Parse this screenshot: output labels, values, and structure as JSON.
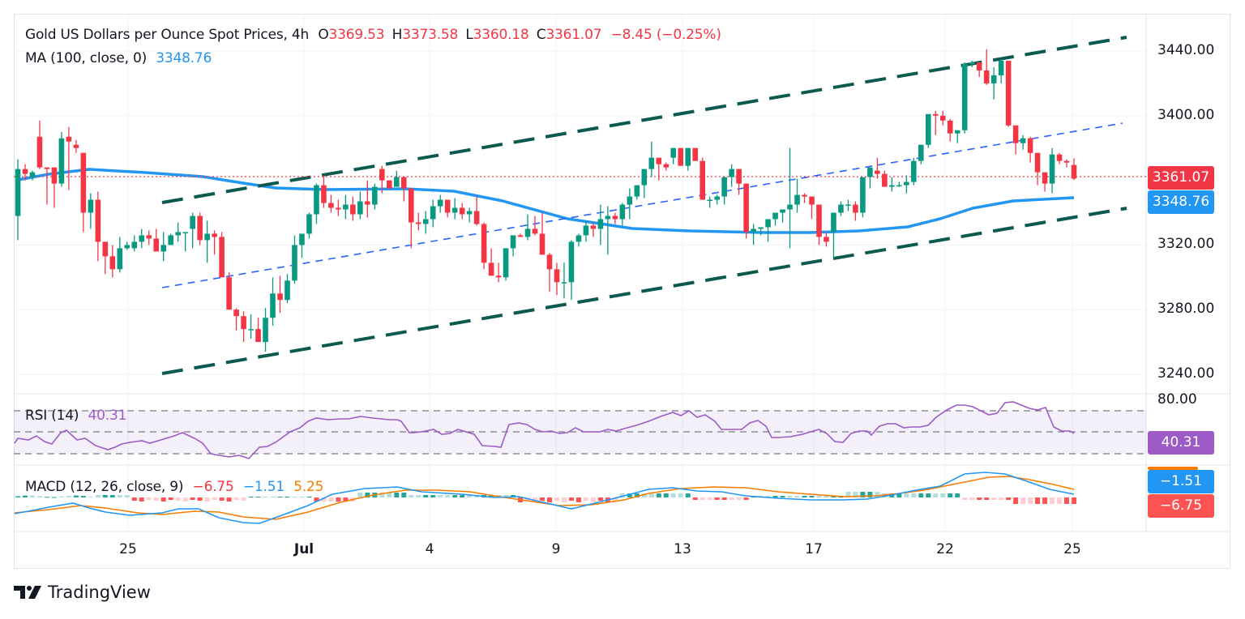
{
  "header": {
    "symbol": "Gold US Dollars per Ounce Spot Prices, 4h",
    "open_label": "O",
    "open": "3369.53",
    "high_label": "H",
    "high": "3373.58",
    "low_label": "L",
    "low": "3360.18",
    "close_label": "C",
    "close": "3361.07",
    "change": "−8.45 (−0.25%)"
  },
  "ma_legend": {
    "label": "MA (100, close, 0)",
    "value": "3348.76"
  },
  "rsi_legend": {
    "label": "RSI (14)",
    "value": "40.31"
  },
  "macd_legend": {
    "label": "MACD (12, 26, close, 9)",
    "histogram": "−6.75",
    "macd": "−1.51",
    "signal": "5.25"
  },
  "price_axis": {
    "ticks": [
      "3440.00",
      "3400.00",
      "3320.00",
      "3280.00",
      "3240.00"
    ]
  },
  "price_tags": {
    "last_price": "3361.07",
    "ma_value": "3348.76"
  },
  "rsi_axis": {
    "tick": "80.00",
    "tag": "40.31"
  },
  "macd_tags": {
    "macd": "−1.51",
    "histogram": "−6.75"
  },
  "time_axis": {
    "labels": [
      "25",
      "Jul",
      "4",
      "9",
      "13",
      "17",
      "22",
      "25"
    ]
  },
  "branding": {
    "name": "TradingView"
  },
  "colors": {
    "up": "#089981",
    "down": "#f23645",
    "ma": "#2196f3",
    "channel": "#0b5a50",
    "midline": "#2962ff",
    "rsi": "#9c5bc6",
    "macd": "#2196f3",
    "signal": "#f77c00",
    "hist_up_strong": "#26a69a",
    "hist_up_weak": "#b2dfdb",
    "hist_down_strong": "#ff5252",
    "hist_down_weak": "#ffcdd2"
  },
  "chart_data": {
    "type": "candlestick",
    "title": "Gold US Dollars per Ounce Spot Prices, 4h",
    "y_range": [
      3225,
      3455
    ],
    "y_ticks": [
      3240,
      3280,
      3320,
      3400,
      3440
    ],
    "x_tick_labels": [
      "25",
      "Jul",
      "4",
      "9",
      "13",
      "17",
      "22",
      "25"
    ],
    "ohlc": [
      [
        3338,
        3373,
        3323,
        3367
      ],
      [
        3367,
        3370,
        3360,
        3364
      ],
      [
        3362,
        3366,
        3360,
        3365
      ],
      [
        3387,
        3397,
        3367,
        3368
      ],
      [
        3368,
        3367,
        3345,
        3367
      ],
      [
        3368,
        3354,
        3343,
        3358
      ],
      [
        3358,
        3390,
        3356,
        3386
      ],
      [
        3387,
        3393,
        3354,
        3384
      ],
      [
        3382,
        3385,
        3377,
        3380
      ],
      [
        3377,
        3376,
        3328,
        3340
      ],
      [
        3340,
        3352,
        3330,
        3348
      ],
      [
        3348,
        3353,
        3310,
        3322
      ],
      [
        3322,
        3320,
        3302,
        3313
      ],
      [
        3313,
        3320,
        3300,
        3305
      ],
      [
        3305,
        3325,
        3303,
        3318
      ],
      [
        3318,
        3322,
        3317,
        3320
      ],
      [
        3318,
        3326,
        3316,
        3322
      ],
      [
        3322,
        3330,
        3318,
        3326
      ],
      [
        3326,
        3329,
        3320,
        3324
      ],
      [
        3324,
        3330,
        3320,
        3316
      ],
      [
        3316,
        3328,
        3310,
        3320
      ],
      [
        3320,
        3327,
        3320,
        3326
      ],
      [
        3326,
        3334,
        3322,
        3328
      ],
      [
        3328,
        3327,
        3316,
        3328
      ],
      [
        3330,
        3340,
        3318,
        3338
      ],
      [
        3338,
        3340,
        3320,
        3323
      ],
      [
        3323,
        3335,
        3309,
        3327
      ],
      [
        3327,
        3329,
        3314,
        3325
      ],
      [
        3325,
        3328,
        3306,
        3300
      ],
      [
        3300,
        3303,
        3288,
        3280
      ],
      [
        3280,
        3281,
        3267,
        3276
      ],
      [
        3276,
        3279,
        3260,
        3268
      ],
      [
        3268,
        3277,
        3262,
        3268
      ],
      [
        3268,
        3275,
        3260,
        3260
      ],
      [
        3260,
        3281,
        3254,
        3275
      ],
      [
        3275,
        3300,
        3270,
        3290
      ],
      [
        3290,
        3301,
        3278,
        3286
      ],
      [
        3286,
        3302,
        3284,
        3298
      ],
      [
        3298,
        3326,
        3296,
        3320
      ],
      [
        3320,
        3324,
        3312,
        3327
      ],
      [
        3327,
        3340,
        3324,
        3339
      ],
      [
        3339,
        3358,
        3333,
        3357
      ],
      [
        3357,
        3363,
        3343,
        3346
      ],
      [
        3346,
        3351,
        3340,
        3343
      ],
      [
        3343,
        3348,
        3338,
        3342
      ],
      [
        3342,
        3351,
        3336,
        3345
      ],
      [
        3345,
        3350,
        3335,
        3339
      ],
      [
        3339,
        3353,
        3336,
        3347
      ],
      [
        3347,
        3360,
        3337,
        3345
      ],
      [
        3345,
        3358,
        3342,
        3356
      ],
      [
        3367,
        3369,
        3352,
        3360
      ],
      [
        3360,
        3357,
        3358,
        3355
      ],
      [
        3356,
        3366,
        3356,
        3362
      ],
      [
        3362,
        3357,
        3347,
        3355
      ],
      [
        3355,
        3352,
        3318,
        3334
      ],
      [
        3334,
        3340,
        3329,
        3333
      ],
      [
        3333,
        3341,
        3327,
        3336
      ],
      [
        3336,
        3348,
        3331,
        3344
      ],
      [
        3344,
        3351,
        3340,
        3348
      ],
      [
        3348,
        3347,
        3337,
        3340
      ],
      [
        3340,
        3349,
        3336,
        3343
      ],
      [
        3343,
        3346,
        3336,
        3339
      ],
      [
        3339,
        3343,
        3334,
        3341
      ],
      [
        3341,
        3350,
        3332,
        3333
      ],
      [
        3333,
        3334,
        3305,
        3309
      ],
      [
        3309,
        3318,
        3302,
        3301
      ],
      [
        3301,
        3309,
        3297,
        3300
      ],
      [
        3300,
        3313,
        3298,
        3318
      ],
      [
        3318,
        3324,
        3313,
        3326
      ],
      [
        3326,
        3327,
        3325,
        3325
      ],
      [
        3325,
        3339,
        3323,
        3330
      ],
      [
        3330,
        3338,
        3326,
        3327
      ],
      [
        3327,
        3340,
        3322,
        3314
      ],
      [
        3314,
        3315,
        3291,
        3305
      ],
      [
        3305,
        3309,
        3289,
        3297
      ],
      [
        3297,
        3309,
        3287,
        3297
      ],
      [
        3297,
        3323,
        3286,
        3322
      ],
      [
        3322,
        3327,
        3319,
        3326
      ],
      [
        3326,
        3335,
        3322,
        3332
      ],
      [
        3332,
        3334,
        3325,
        3330
      ],
      [
        3330,
        3345,
        3320,
        3336
      ],
      [
        3336,
        3344,
        3314,
        3338
      ],
      [
        3338,
        3340,
        3333,
        3336
      ],
      [
        3336,
        3346,
        3332,
        3345
      ],
      [
        3345,
        3355,
        3336,
        3350
      ],
      [
        3350,
        3353,
        3348,
        3357
      ],
      [
        3357,
        3367,
        3349,
        3367
      ],
      [
        3367,
        3384,
        3362,
        3374
      ],
      [
        3374,
        3372,
        3360,
        3370
      ],
      [
        3370,
        3371,
        3366,
        3368
      ],
      [
        3374,
        3378,
        3370,
        3380
      ],
      [
        3380,
        3378,
        3369,
        3369
      ],
      [
        3369,
        3380,
        3366,
        3380
      ],
      [
        3380,
        3379,
        3381,
        3372
      ],
      [
        3372,
        3374,
        3348,
        3348
      ],
      [
        3348,
        3350,
        3343,
        3348
      ],
      [
        3348,
        3351,
        3345,
        3350
      ],
      [
        3350,
        3357,
        3345,
        3362
      ],
      [
        3362,
        3370,
        3356,
        3367
      ],
      [
        3367,
        3366,
        3351,
        3358
      ],
      [
        3358,
        3354,
        3324,
        3328
      ],
      [
        3328,
        3333,
        3320,
        3330
      ],
      [
        3330,
        3331,
        3326,
        3331
      ],
      [
        3331,
        3336,
        3322,
        3336
      ],
      [
        3336,
        3340,
        3332,
        3340
      ],
      [
        3340,
        3342,
        3334,
        3342
      ],
      [
        3342,
        3380,
        3318,
        3345
      ],
      [
        3345,
        3361,
        3340,
        3351
      ],
      [
        3351,
        3352,
        3346,
        3350
      ],
      [
        3350,
        3349,
        3336,
        3345
      ],
      [
        3345,
        3342,
        3320,
        3325
      ],
      [
        3325,
        3328,
        3319,
        3322
      ],
      [
        3328,
        3338,
        3312,
        3340
      ],
      [
        3340,
        3347,
        3338,
        3345
      ],
      [
        3345,
        3348,
        3341,
        3345
      ],
      [
        3345,
        3347,
        3335,
        3340
      ],
      [
        3340,
        3362,
        3337,
        3362
      ],
      [
        3362,
        3368,
        3355,
        3368
      ],
      [
        3366,
        3374,
        3361,
        3364
      ],
      [
        3364,
        3366,
        3358,
        3356
      ],
      [
        3356,
        3362,
        3353,
        3357
      ],
      [
        3357,
        3359,
        3356,
        3357
      ],
      [
        3357,
        3363,
        3352,
        3359
      ],
      [
        3359,
        3374,
        3357,
        3372
      ],
      [
        3372,
        3379,
        3370,
        3382
      ],
      [
        3382,
        3401,
        3380,
        3401
      ],
      [
        3401,
        3403,
        3388,
        3400
      ],
      [
        3400,
        3403,
        3394,
        3397
      ],
      [
        3397,
        3398,
        3384,
        3389
      ],
      [
        3389,
        3391,
        3383,
        3391
      ],
      [
        3391,
        3433,
        3389,
        3432
      ],
      [
        3432,
        3434,
        3430,
        3433
      ],
      [
        3433,
        3430,
        3424,
        3428
      ],
      [
        3428,
        3441,
        3419,
        3420
      ],
      [
        3420,
        3430,
        3410,
        3425
      ],
      [
        3425,
        3435,
        3420,
        3434
      ],
      [
        3434,
        3429,
        3393,
        3394
      ],
      [
        3394,
        3392,
        3376,
        3383
      ],
      [
        3383,
        3388,
        3379,
        3386
      ],
      [
        3386,
        3387,
        3371,
        3377
      ],
      [
        3377,
        3371,
        3357,
        3365
      ],
      [
        3365,
        3364,
        3353,
        3358
      ],
      [
        3358,
        3380,
        3352,
        3376
      ],
      [
        3376,
        3377,
        3370,
        3372
      ],
      [
        3372,
        3373,
        3368,
        3371
      ],
      [
        3369.53,
        3373.58,
        3360.18,
        3361.07
      ]
    ],
    "ma100": {
      "label": "MA (100, close, 0)",
      "last": 3348.76
    },
    "channel": {
      "upper": [
        [
          0.25,
          3345
        ],
        [
          1.0,
          3448
        ]
      ],
      "lower": [
        [
          0.0,
          3240
        ],
        [
          1.0,
          3343
        ]
      ],
      "mid": [
        [
          0.0,
          3293
        ],
        [
          1.0,
          3395
        ]
      ]
    },
    "rsi": {
      "label": "RSI (14)",
      "last": 40.31,
      "levels": [
        70,
        50,
        30
      ],
      "range": [
        20,
        82
      ]
    },
    "macd": {
      "label": "MACD (12, 26, close, 9)",
      "macd_last": -1.51,
      "signal_last": 5.25,
      "hist_last": -6.75
    }
  }
}
